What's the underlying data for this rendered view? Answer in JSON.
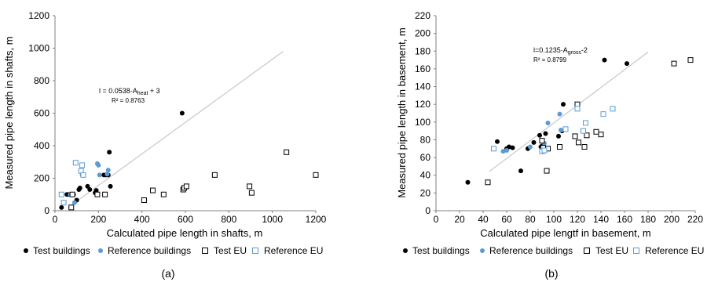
{
  "chart_data": [
    {
      "type": "scatter",
      "xlabel": "Calculated pipe length in shafts, m",
      "ylabel": "Measured pipe length in shafts, m",
      "xlim": [
        0,
        1200
      ],
      "ylim": [
        0,
        1200
      ],
      "xticks": [
        0,
        200,
        400,
        600,
        800,
        1000,
        1200
      ],
      "yticks": [
        0,
        200,
        400,
        600,
        800,
        1000,
        1200
      ],
      "grid": false,
      "legend_position": "bottom",
      "panel_label": "(a)",
      "trendline": {
        "equation_prefix": "l = 0.0538·A",
        "equation_sub": "heat",
        "equation_suffix": " + 3",
        "r2": "R² = 0.8763",
        "from": [
          60,
          20
        ],
        "to": [
          1050,
          980
        ],
        "color": "#c8c8c8"
      },
      "series": [
        {
          "name": "Test buildings",
          "marker": "dot",
          "color": "#000000",
          "points": [
            [
              30,
              20
            ],
            [
              55,
              100
            ],
            [
              65,
              100
            ],
            [
              85,
              100
            ],
            [
              100,
              65
            ],
            [
              110,
              130
            ],
            [
              115,
              140
            ],
            [
              150,
              150
            ],
            [
              160,
              130
            ],
            [
              185,
              110
            ],
            [
              190,
              125
            ],
            [
              225,
              220
            ],
            [
              235,
              220
            ],
            [
              245,
              220
            ],
            [
              250,
              360
            ],
            [
              255,
              150
            ],
            [
              585,
              600
            ]
          ]
        },
        {
          "name": "Reference buildings",
          "marker": "dot",
          "color": "#5b9bd5",
          "points": [
            [
              70,
              100
            ],
            [
              90,
              50
            ],
            [
              125,
              220
            ],
            [
              195,
              290
            ],
            [
              200,
              280
            ],
            [
              205,
              220
            ],
            [
              240,
              225
            ],
            [
              245,
              250
            ]
          ]
        },
        {
          "name": "Test EU",
          "marker": "square",
          "color": "#000000",
          "points": [
            [
              75,
              20
            ],
            [
              80,
              100
            ],
            [
              195,
              100
            ],
            [
              230,
              100
            ],
            [
              410,
              65
            ],
            [
              450,
              125
            ],
            [
              500,
              100
            ],
            [
              590,
              130
            ],
            [
              595,
              140
            ],
            [
              605,
              150
            ],
            [
              735,
              220
            ],
            [
              895,
              150
            ],
            [
              905,
              110
            ],
            [
              1065,
              360
            ],
            [
              1200,
              220
            ]
          ]
        },
        {
          "name": "Reference EU",
          "marker": "square",
          "color": "#5b9bd5",
          "points": [
            [
              30,
              100
            ],
            [
              40,
              50
            ],
            [
              95,
              295
            ],
            [
              120,
              245
            ],
            [
              125,
              280
            ],
            [
              130,
              220
            ]
          ]
        }
      ]
    },
    {
      "type": "scatter",
      "xlabel": "Calculated pipe lengtf in basement, m",
      "ylabel": "Measured pipe length in basement, m",
      "xlim": [
        0,
        220
      ],
      "ylim": [
        0,
        220
      ],
      "xticks": [
        0,
        20,
        40,
        60,
        80,
        100,
        120,
        140,
        160,
        180,
        200,
        220
      ],
      "yticks": [
        0,
        20,
        40,
        60,
        80,
        100,
        120,
        140,
        160,
        180,
        200,
        220
      ],
      "grid": false,
      "legend_position": "bottom",
      "panel_label": "(b)",
      "trendline": {
        "equation_prefix": "l=0.1235·A",
        "equation_sub": "gross",
        "equation_suffix": "-2",
        "r2": "R² = 0.8799",
        "from": [
          45,
          44
        ],
        "to": [
          180,
          179
        ],
        "color": "#c8c8c8"
      },
      "series": [
        {
          "name": "Test buildings",
          "marker": "dot",
          "color": "#000000",
          "points": [
            [
              27,
              32
            ],
            [
              52,
              78
            ],
            [
              60,
              70
            ],
            [
              62,
              72
            ],
            [
              65,
              71
            ],
            [
              72,
              45
            ],
            [
              78,
              70
            ],
            [
              83,
              77
            ],
            [
              88,
              85
            ],
            [
              89,
              72
            ],
            [
              90,
              73
            ],
            [
              93,
              87
            ],
            [
              104,
              84
            ],
            [
              107,
              90
            ],
            [
              108,
              120
            ],
            [
              143,
              170
            ],
            [
              162,
              166
            ]
          ]
        },
        {
          "name": "Reference buildings",
          "marker": "dot",
          "color": "#5b9bd5",
          "points": [
            [
              57,
              67
            ],
            [
              60,
              68
            ],
            [
              80,
              72
            ],
            [
              90,
              70
            ],
            [
              92,
              76
            ],
            [
              95,
              99
            ],
            [
              105,
              109
            ],
            [
              106,
              91
            ],
            [
              120,
              116
            ]
          ]
        },
        {
          "name": "Test EU",
          "marker": "square",
          "color": "#000000",
          "points": [
            [
              44,
              32
            ],
            [
              90,
              79
            ],
            [
              91,
              71
            ],
            [
              94,
              45
            ],
            [
              95,
              70
            ],
            [
              105,
              72
            ],
            [
              118,
              84
            ],
            [
              120,
              120
            ],
            [
              121,
              77
            ],
            [
              126,
              72
            ],
            [
              128,
              85
            ],
            [
              136,
              89
            ],
            [
              140,
              86
            ],
            [
              202,
              166
            ],
            [
              216,
              170
            ]
          ]
        },
        {
          "name": "Reference EU",
          "marker": "square",
          "color": "#5b9bd5",
          "points": [
            [
              49,
              70
            ],
            [
              90,
              67
            ],
            [
              92,
              68
            ],
            [
              110,
              92
            ],
            [
              120,
              115
            ],
            [
              125,
              90
            ],
            [
              127,
              99
            ],
            [
              142,
              109
            ],
            [
              150,
              115
            ]
          ]
        }
      ]
    }
  ]
}
